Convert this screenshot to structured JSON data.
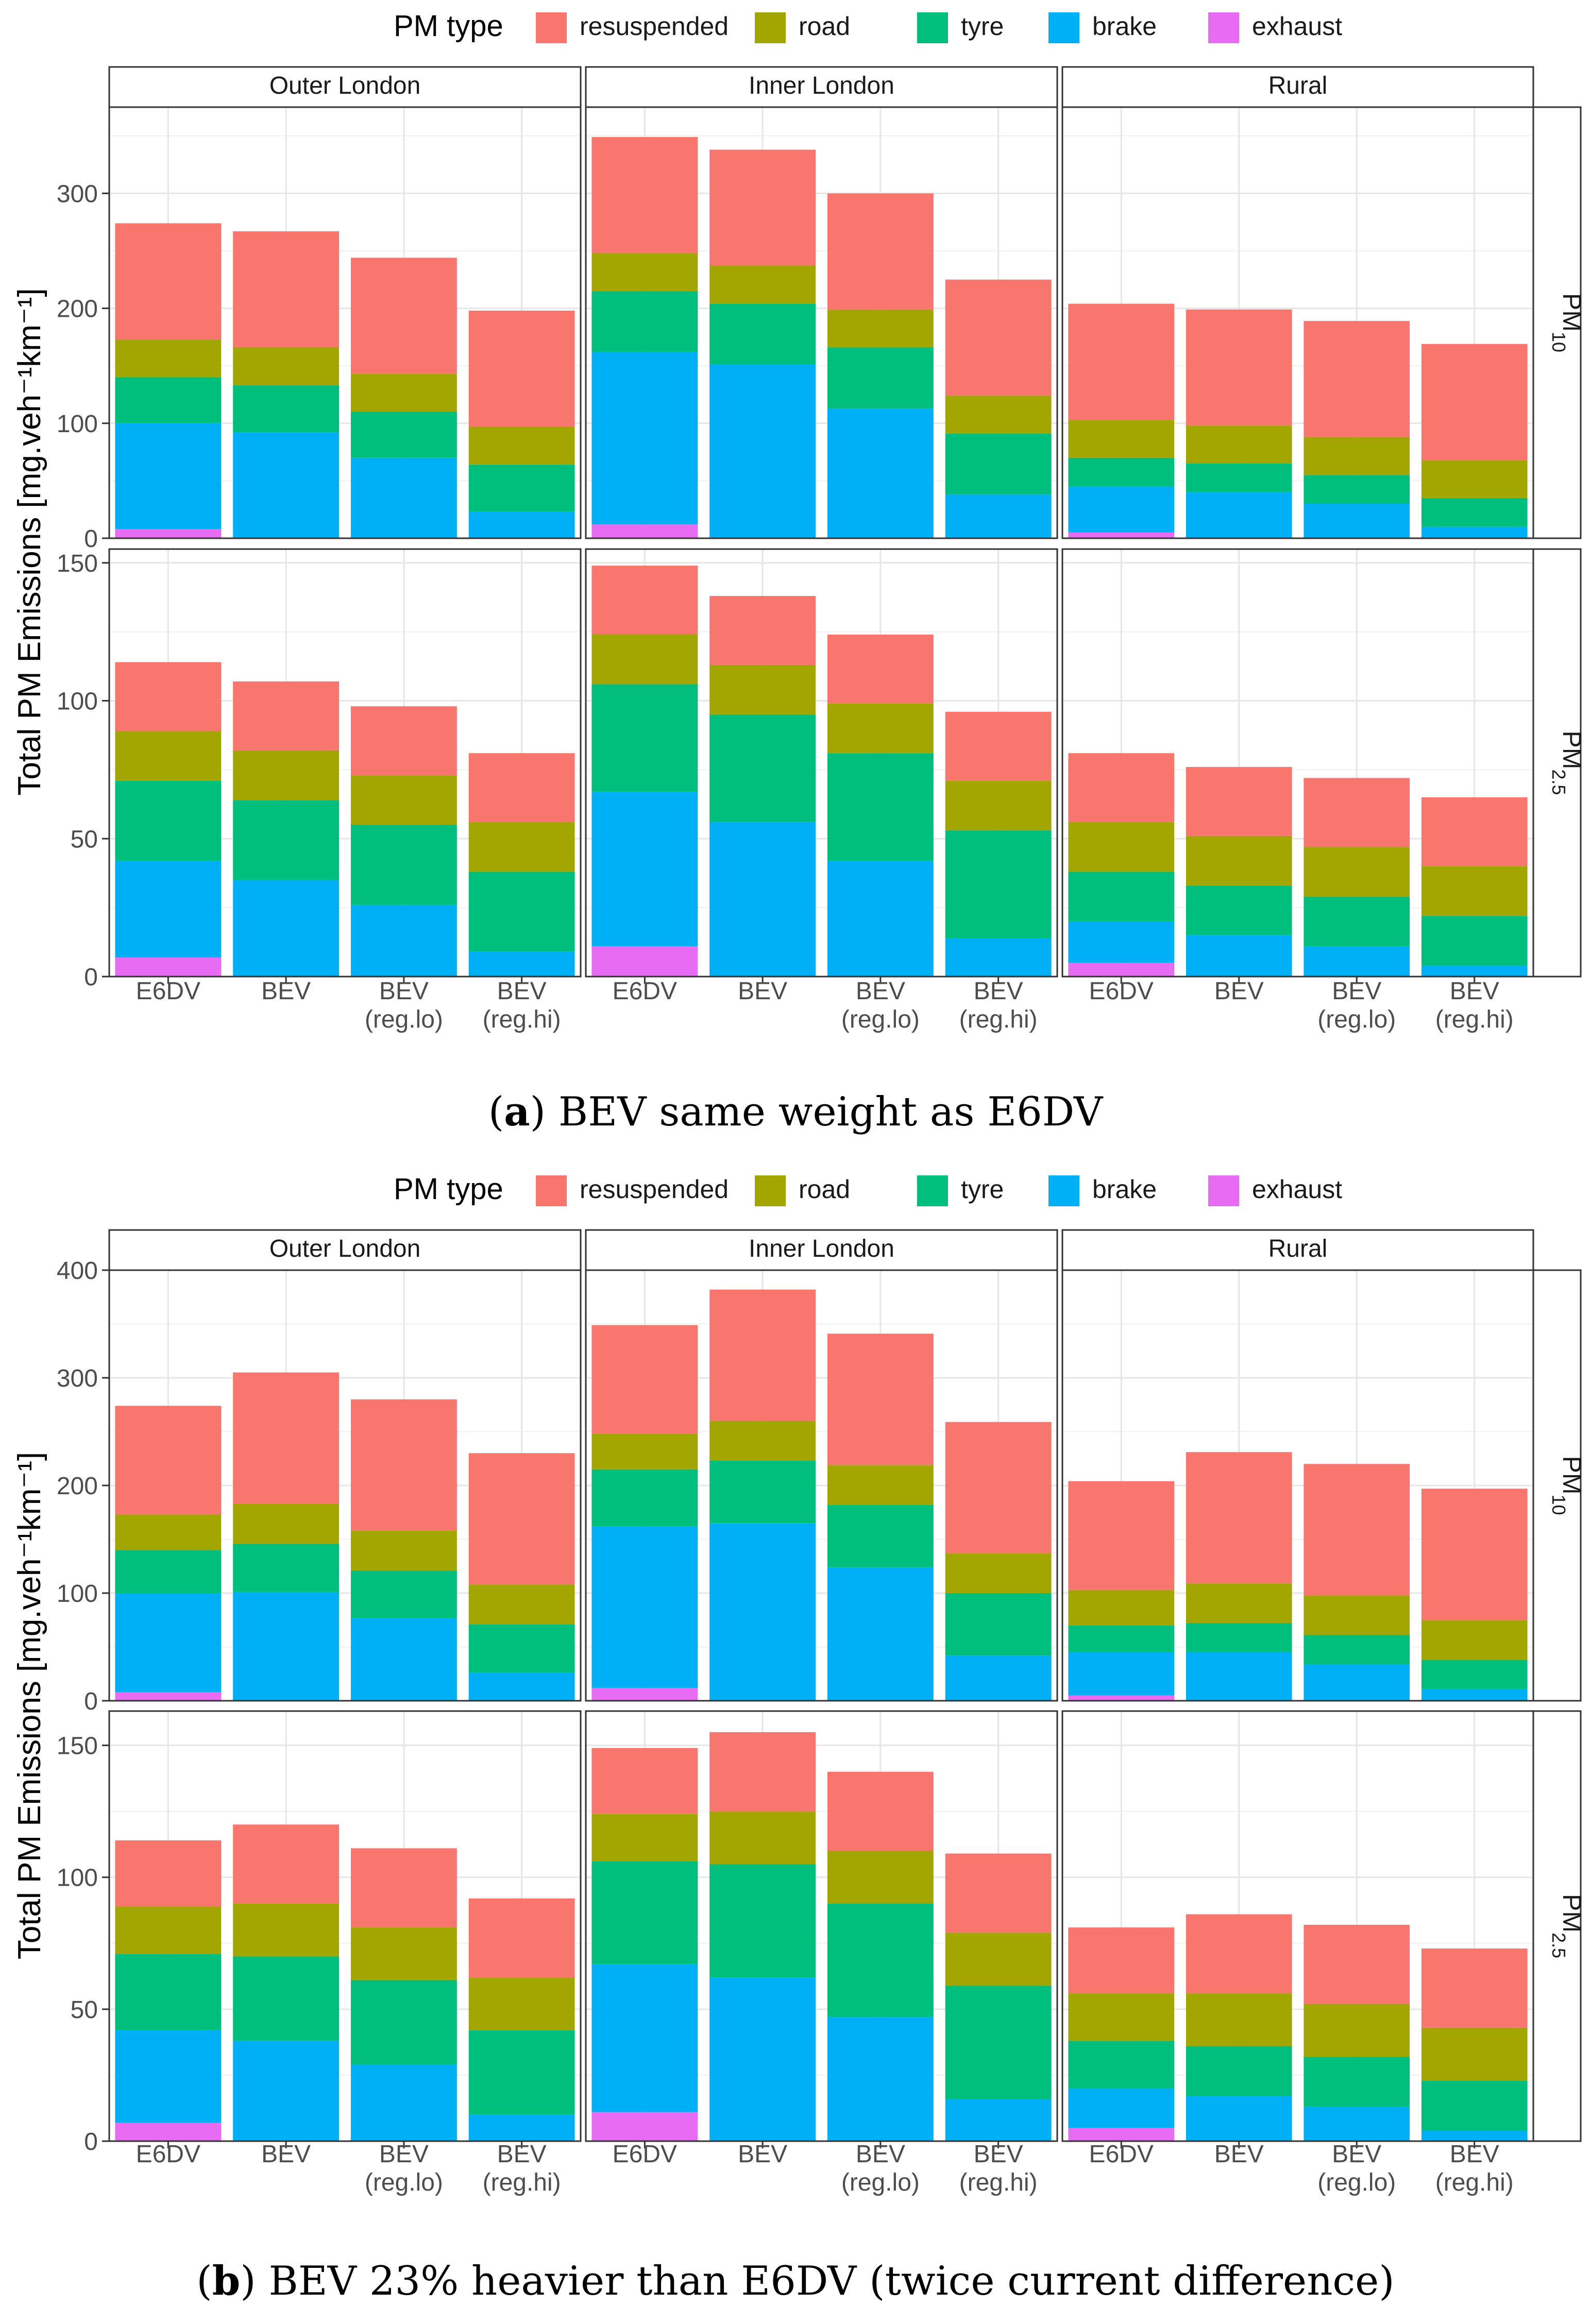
{
  "figure": {
    "legend_title": "PM type",
    "y_axis_label": "Total PM Emissions [mg.veh⁻¹km⁻¹]"
  },
  "legend": {
    "items": [
      {
        "key": "resuspended",
        "label": "resuspended",
        "color": "#F8766D"
      },
      {
        "key": "road",
        "label": "road",
        "color": "#A3A500"
      },
      {
        "key": "tyre",
        "label": "tyre",
        "color": "#00BF7D"
      },
      {
        "key": "brake",
        "label": "brake",
        "color": "#00B0F6"
      },
      {
        "key": "exhaust",
        "label": "exhaust",
        "color": "#E76BF3"
      }
    ]
  },
  "captions": {
    "a": {
      "letter": "a",
      "text": "BEV same weight as E6DV"
    },
    "b": {
      "letter": "b",
      "text": "BEV 23% heavier than E6DV (twice current difference)"
    }
  },
  "chart_data": [
    {
      "id": "a",
      "type": "bar",
      "stacked": true,
      "caption": "(a) BEV same weight as E6DV",
      "ylabel": "Total PM Emissions [mg.veh⁻¹km⁻¹]",
      "categories": [
        "E6DV",
        "BEV",
        "BEV (reg.lo)",
        "BEV (reg.hi)"
      ],
      "category_lines": [
        [
          "E6DV"
        ],
        [
          "BEV"
        ],
        [
          "BEV",
          "(reg.lo)"
        ],
        [
          "BEV",
          "(reg.hi)"
        ]
      ],
      "series_order": [
        "exhaust",
        "brake",
        "tyre",
        "road",
        "resuspended"
      ],
      "columns": [
        "Outer London",
        "Inner London",
        "Rural"
      ],
      "rows": [
        {
          "label": "PM10",
          "label_main": "PM",
          "label_sub": "10",
          "ylim": [
            0,
            375
          ],
          "ticks": [
            0,
            100,
            200,
            300
          ],
          "panels": {
            "Outer London": {
              "exhaust": [
                8,
                0,
                0,
                0
              ],
              "brake": [
                92,
                92,
                70,
                23
              ],
              "tyre": [
                40,
                41,
                40,
                41
              ],
              "road": [
                33,
                33,
                33,
                33
              ],
              "resuspended": [
                101,
                101,
                101,
                101
              ]
            },
            "Inner London": {
              "exhaust": [
                12,
                0,
                0,
                0
              ],
              "brake": [
                150,
                151,
                113,
                38
              ],
              "tyre": [
                53,
                53,
                53,
                53
              ],
              "road": [
                33,
                33,
                33,
                33
              ],
              "resuspended": [
                101,
                101,
                101,
                101
              ]
            },
            "Rural": {
              "exhaust": [
                5,
                0,
                0,
                0
              ],
              "brake": [
                40,
                40,
                30,
                10
              ],
              "tyre": [
                25,
                25,
                25,
                25
              ],
              "road": [
                33,
                33,
                33,
                33
              ],
              "resuspended": [
                101,
                101,
                101,
                101
              ]
            }
          }
        },
        {
          "label": "PM2.5",
          "label_main": "PM",
          "label_sub": "2.5",
          "ylim": [
            0,
            155
          ],
          "ticks": [
            0,
            50,
            100,
            150
          ],
          "panels": {
            "Outer London": {
              "exhaust": [
                7,
                0,
                0,
                0
              ],
              "brake": [
                35,
                35,
                26,
                9
              ],
              "tyre": [
                29,
                29,
                29,
                29
              ],
              "road": [
                18,
                18,
                18,
                18
              ],
              "resuspended": [
                25,
                25,
                25,
                25
              ]
            },
            "Inner London": {
              "exhaust": [
                11,
                0,
                0,
                0
              ],
              "brake": [
                56,
                56,
                42,
                14
              ],
              "tyre": [
                39,
                39,
                39,
                39
              ],
              "road": [
                18,
                18,
                18,
                18
              ],
              "resuspended": [
                25,
                25,
                25,
                25
              ]
            },
            "Rural": {
              "exhaust": [
                5,
                0,
                0,
                0
              ],
              "brake": [
                15,
                15,
                11,
                4
              ],
              "tyre": [
                18,
                18,
                18,
                18
              ],
              "road": [
                18,
                18,
                18,
                18
              ],
              "resuspended": [
                25,
                25,
                25,
                25
              ]
            }
          }
        }
      ]
    },
    {
      "id": "b",
      "type": "bar",
      "stacked": true,
      "caption": "(b) BEV 23% heavier than E6DV (twice current difference)",
      "ylabel": "Total PM Emissions [mg.veh⁻¹km⁻¹]",
      "categories": [
        "E6DV",
        "BEV",
        "BEV (reg.lo)",
        "BEV (reg.hi)"
      ],
      "category_lines": [
        [
          "E6DV"
        ],
        [
          "BEV"
        ],
        [
          "BEV",
          "(reg.lo)"
        ],
        [
          "BEV",
          "(reg.hi)"
        ]
      ],
      "series_order": [
        "exhaust",
        "brake",
        "tyre",
        "road",
        "resuspended"
      ],
      "columns": [
        "Outer London",
        "Inner London",
        "Rural"
      ],
      "rows": [
        {
          "label": "PM10",
          "label_main": "PM",
          "label_sub": "10",
          "ylim": [
            0,
            400
          ],
          "ticks": [
            0,
            100,
            200,
            300,
            400
          ],
          "panels": {
            "Outer London": {
              "exhaust": [
                8,
                0,
                0,
                0
              ],
              "brake": [
                92,
                101,
                77,
                26
              ],
              "tyre": [
                40,
                45,
                44,
                45
              ],
              "road": [
                33,
                37,
                37,
                37
              ],
              "resuspended": [
                101,
                122,
                122,
                122
              ]
            },
            "Inner London": {
              "exhaust": [
                12,
                0,
                0,
                0
              ],
              "brake": [
                150,
                165,
                124,
                42
              ],
              "tyre": [
                53,
                58,
                58,
                58
              ],
              "road": [
                33,
                37,
                37,
                37
              ],
              "resuspended": [
                101,
                122,
                122,
                122
              ]
            },
            "Rural": {
              "exhaust": [
                5,
                0,
                0,
                0
              ],
              "brake": [
                40,
                45,
                34,
                11
              ],
              "tyre": [
                25,
                27,
                27,
                27
              ],
              "road": [
                33,
                37,
                37,
                37
              ],
              "resuspended": [
                101,
                122,
                122,
                122
              ]
            }
          }
        },
        {
          "label": "PM2.5",
          "label_main": "PM",
          "label_sub": "2.5",
          "ylim": [
            0,
            163
          ],
          "ticks": [
            0,
            50,
            100,
            150
          ],
          "panels": {
            "Outer London": {
              "exhaust": [
                7,
                0,
                0,
                0
              ],
              "brake": [
                35,
                38,
                29,
                10
              ],
              "tyre": [
                29,
                32,
                32,
                32
              ],
              "road": [
                18,
                20,
                20,
                20
              ],
              "resuspended": [
                25,
                30,
                30,
                30
              ]
            },
            "Inner London": {
              "exhaust": [
                11,
                0,
                0,
                0
              ],
              "brake": [
                56,
                62,
                47,
                16
              ],
              "tyre": [
                39,
                43,
                43,
                43
              ],
              "road": [
                18,
                20,
                20,
                20
              ],
              "resuspended": [
                25,
                30,
                30,
                30
              ]
            },
            "Rural": {
              "exhaust": [
                5,
                0,
                0,
                0
              ],
              "brake": [
                15,
                17,
                13,
                4
              ],
              "tyre": [
                18,
                19,
                19,
                19
              ],
              "road": [
                18,
                20,
                20,
                20
              ],
              "resuspended": [
                25,
                30,
                30,
                30
              ]
            }
          }
        }
      ]
    }
  ]
}
